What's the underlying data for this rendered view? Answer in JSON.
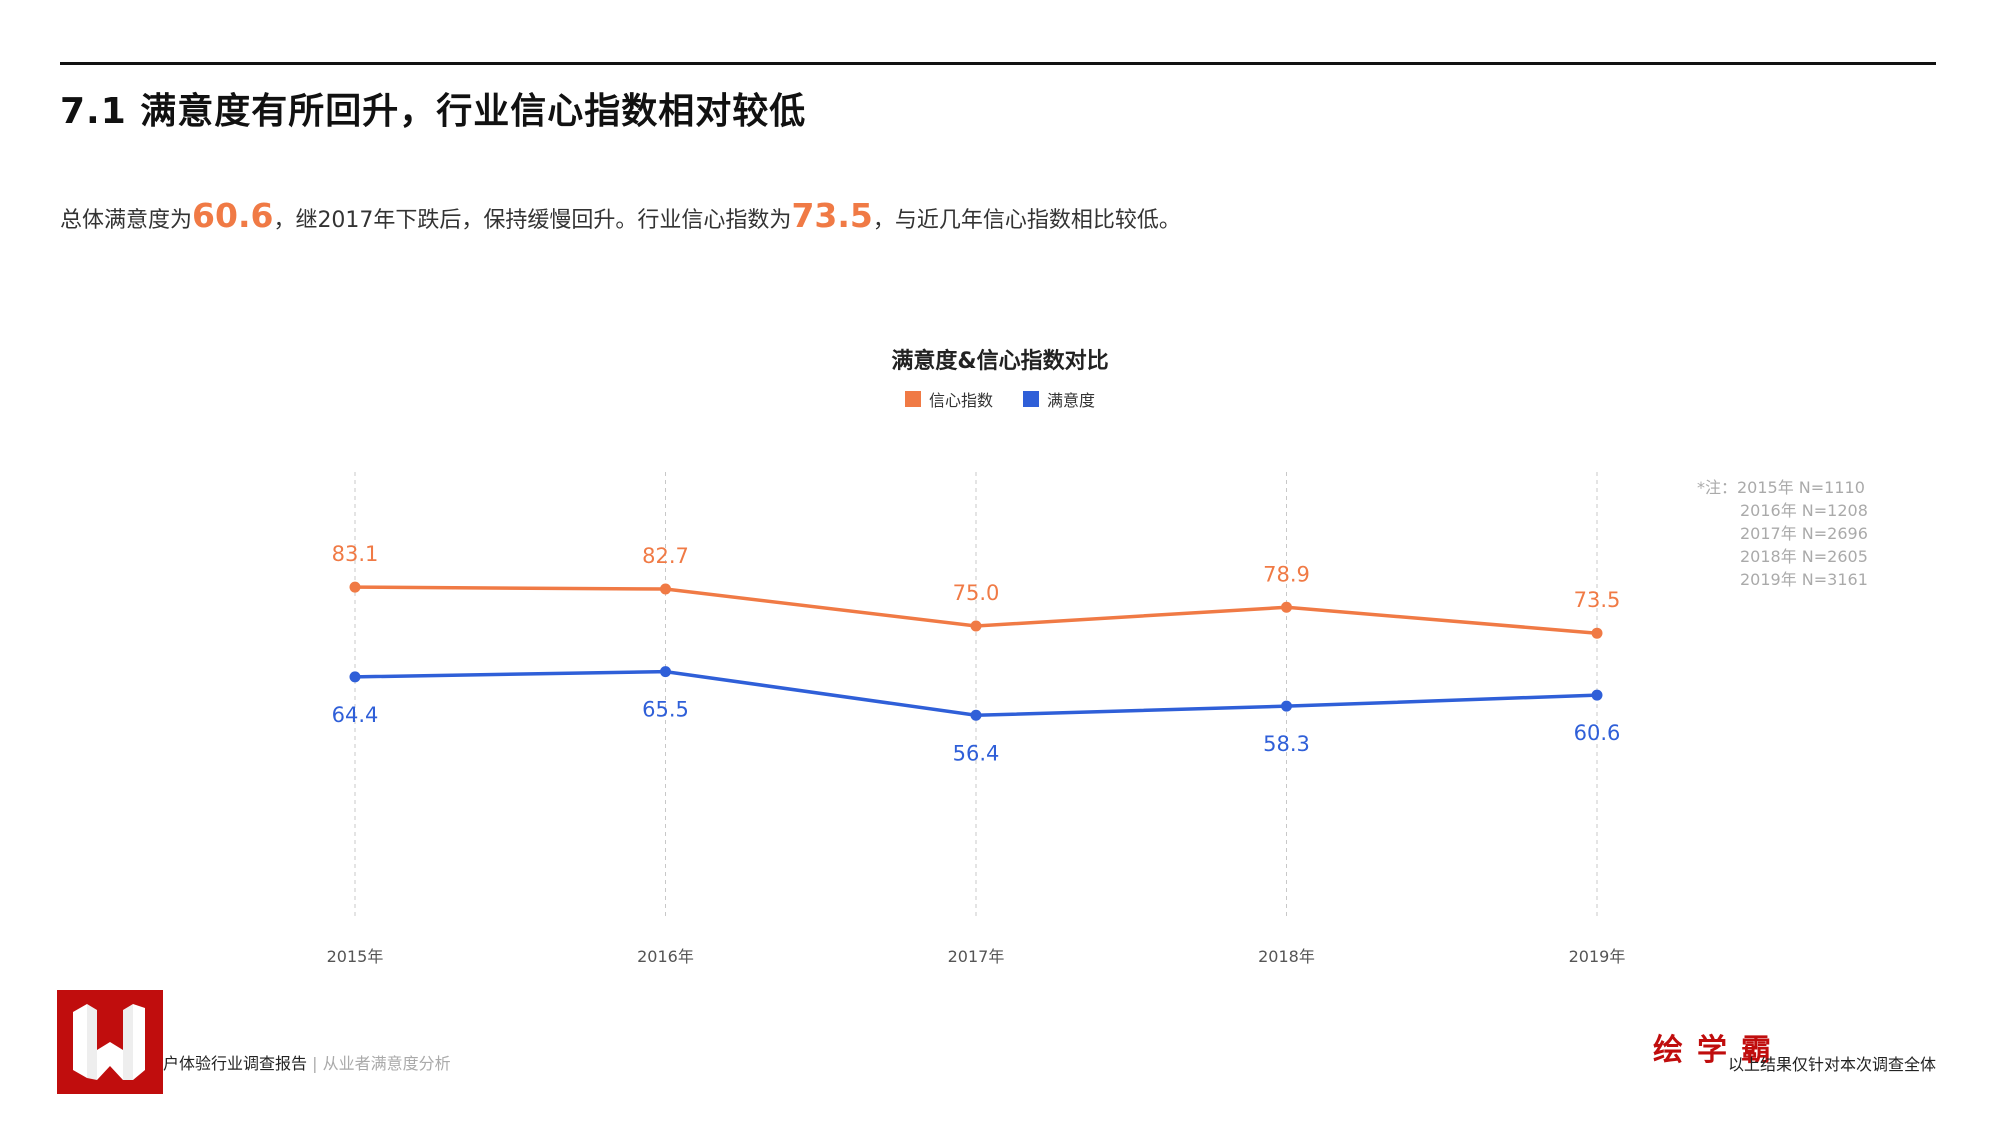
{
  "page": {
    "title": "7.1 满意度有所回升，行业信心指数相对较低",
    "subtitle_parts": [
      "总体满意度为",
      "60.6",
      "，继2017年下跌后，保持缓慢回升。行业信心指数为",
      "73.5",
      "，与近几年信心指数相比较低。"
    ]
  },
  "chart_data": {
    "type": "line",
    "title": "满意度&信心指数对比",
    "categories": [
      "2015年",
      "2016年",
      "2017年",
      "2018年",
      "2019年"
    ],
    "series": [
      {
        "name": "信心指数",
        "color": "#f07a45",
        "values": [
          83.1,
          82.7,
          75.0,
          78.9,
          73.5
        ],
        "labels": [
          "83.1",
          "82.7",
          "75.0",
          "78.9",
          "73.5"
        ]
      },
      {
        "name": "满意度",
        "color": "#2f5fd8",
        "values": [
          64.4,
          65.5,
          56.4,
          58.3,
          60.6
        ],
        "labels": [
          "64.4",
          "65.5",
          "56.4",
          "58.3",
          "60.6"
        ]
      }
    ],
    "grid": "vertical-dashed",
    "legend": "top-center",
    "note": [
      "*注：2015年  N=1110",
      "2016年  N=1208",
      "2017年  N=2696",
      "2018年  N=2605",
      "2019年  N=3161"
    ]
  },
  "footer": {
    "report_name": "户体验行业调查报告",
    "separator": "|",
    "section": "从业者满意度分析",
    "brand": "绘学霸",
    "disclaimer": "以上结果仅针对本次调查全体"
  }
}
